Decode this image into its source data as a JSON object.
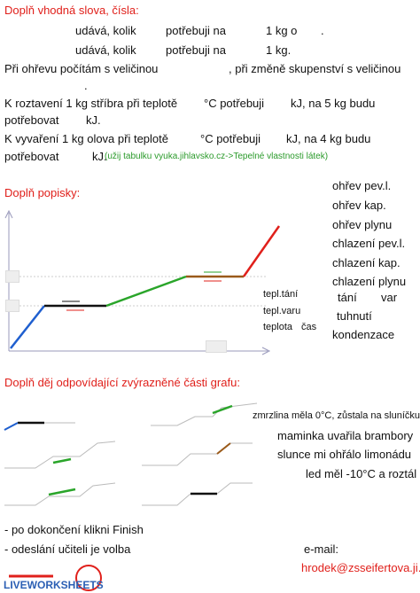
{
  "exercise1": {
    "title": "Doplň vhodná slova, čísla:",
    "line1": [
      "udává, kolik",
      "potřebuji na",
      "1 kg o",
      "."
    ],
    "line2": [
      "udává, kolik",
      "potřebuji na",
      "1 kg."
    ],
    "line3": [
      "Při ohřevu počítám s veličinou",
      ", při změně skupenství s veličinou",
      "."
    ],
    "line4": [
      "K roztavení 1 kg stříbra při teplotě",
      "°C potřebuji",
      "kJ, na 5 kg budu",
      "potřebovat",
      "kJ."
    ],
    "line5": [
      "K vyvaření 1 kg olova při teplotě",
      "°C potřebuji",
      "kJ, na 4 kg budu",
      "potřebovat",
      "kJ."
    ],
    "hint": "(užij tabulku vyuka.jihlavsko.cz->Tepelné vlastnosti látek)"
  },
  "exercise2": {
    "title": "Doplň popisky:",
    "word_bank": [
      "ohřev pev.l.",
      "ohřev kap.",
      "ohřev plynu",
      "chlazení pev.l.",
      "chlazení kap.",
      "chlazení plynu",
      "tání",
      "var",
      "tuhnutí",
      "kondenzace"
    ],
    "graph_labels": [
      "tepl.tání",
      "tepl.varu",
      "teplota",
      "čas"
    ]
  },
  "exercise3": {
    "title": "Doplň děj odpovídající zvýrazněné části grafu:",
    "options": [
      "zmrzlina měla 0°C, zůstala na sluníčku",
      "maminka uvařila brambory",
      "slunce mi ohřálo limonádu",
      "led měl -10°C a roztál"
    ]
  },
  "footer": {
    "notes": [
      "- po dokončení klikni Finish",
      "- odeslání učiteli je volba"
    ],
    "email_label": "e-mail:",
    "email": "hrodek@zsseifertova.ji.cz",
    "logo": "LIVEWORKSHEETS"
  }
}
